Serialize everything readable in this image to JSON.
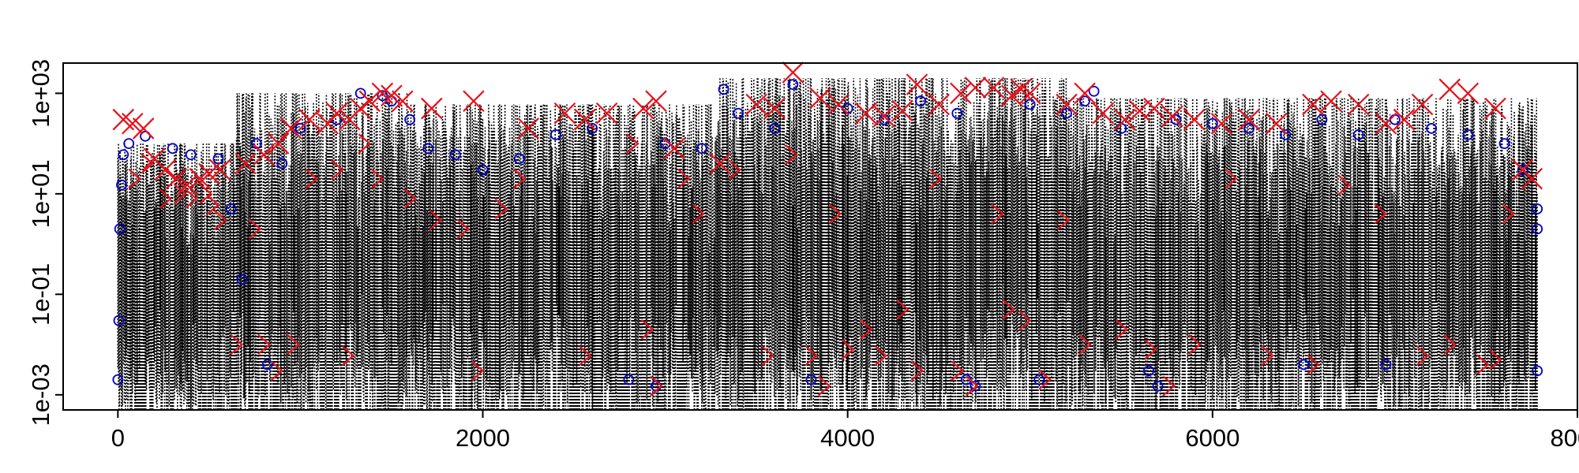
{
  "chart_data": {
    "type": "scatter",
    "title": "",
    "xlabel": "",
    "ylabel": "",
    "y_scale": "log10",
    "xlim": [
      -300,
      8000
    ],
    "ylim": [
      0.0005,
      4000
    ],
    "x_ticks": [
      0,
      2000,
      4000,
      6000,
      8000
    ],
    "x_tick_labels": [
      "0",
      "2000",
      "4000",
      "6000",
      "8000"
    ],
    "y_ticks": [
      0.001,
      0.1,
      10,
      1000
    ],
    "y_tick_labels": [
      "1e-03",
      "1e-01",
      "1e+01",
      "1e+03"
    ],
    "colors": {
      "series_line": "#000000",
      "circle_marker": "#0000cc",
      "x_marker": "#e8101a",
      "chevron_marker": "#e8101a"
    },
    "series": [
      {
        "name": "time series (dotted line)",
        "style": "line-dotted",
        "x_range": [
          0,
          7780
        ],
        "segments": [
          {
            "x_from": 0,
            "x_to": 650,
            "y_min": 0.0005,
            "y_max": 100
          },
          {
            "x_from": 650,
            "x_to": 1600,
            "y_min": 0.0005,
            "y_max": 1000
          },
          {
            "x_from": 1600,
            "x_to": 3300,
            "y_min": 0.0005,
            "y_max": 600
          },
          {
            "x_from": 3300,
            "x_to": 5200,
            "y_min": 0.0005,
            "y_max": 2000
          },
          {
            "x_from": 5200,
            "x_to": 7780,
            "y_min": 0.0005,
            "y_max": 800
          }
        ]
      },
      {
        "name": "circles",
        "style": "circle",
        "points": [
          [
            0,
            0.002
          ],
          [
            5,
            0.03
          ],
          [
            10,
            2
          ],
          [
            20,
            15
          ],
          [
            30,
            60
          ],
          [
            60,
            100
          ],
          [
            150,
            140
          ],
          [
            300,
            80
          ],
          [
            400,
            60
          ],
          [
            550,
            50
          ],
          [
            620,
            5
          ],
          [
            680,
            0.2
          ],
          [
            760,
            100
          ],
          [
            820,
            0.004
          ],
          [
            900,
            40
          ],
          [
            1000,
            200
          ],
          [
            1200,
            300
          ],
          [
            1330,
            1000
          ],
          [
            1450,
            900
          ],
          [
            1500,
            700
          ],
          [
            1600,
            300
          ],
          [
            1700,
            80
          ],
          [
            1850,
            60
          ],
          [
            2000,
            30
          ],
          [
            2200,
            50
          ],
          [
            2400,
            150
          ],
          [
            2600,
            200
          ],
          [
            2800,
            0.002
          ],
          [
            2950,
            0.0015
          ],
          [
            3000,
            100
          ],
          [
            3200,
            80
          ],
          [
            3320,
            1200
          ],
          [
            3400,
            400
          ],
          [
            3600,
            200
          ],
          [
            3700,
            1500
          ],
          [
            3800,
            0.002
          ],
          [
            4000,
            500
          ],
          [
            4200,
            300
          ],
          [
            4400,
            700
          ],
          [
            4600,
            400
          ],
          [
            4650,
            0.002
          ],
          [
            4700,
            0.0015
          ],
          [
            5000,
            600
          ],
          [
            5050,
            0.002
          ],
          [
            5200,
            400
          ],
          [
            5300,
            700
          ],
          [
            5350,
            1100
          ],
          [
            5500,
            200
          ],
          [
            5650,
            0.003
          ],
          [
            5700,
            0.0015
          ],
          [
            5800,
            300
          ],
          [
            6000,
            250
          ],
          [
            6200,
            200
          ],
          [
            6400,
            150
          ],
          [
            6500,
            0.004
          ],
          [
            6600,
            300
          ],
          [
            6800,
            150
          ],
          [
            6950,
            0.004
          ],
          [
            7000,
            300
          ],
          [
            7200,
            200
          ],
          [
            7400,
            150
          ],
          [
            7600,
            100
          ],
          [
            7700,
            30
          ],
          [
            7780,
            0.003
          ],
          [
            7780,
            5
          ],
          [
            7780,
            2
          ]
        ]
      },
      {
        "name": "crosses",
        "style": "x",
        "points": [
          [
            30,
            300
          ],
          [
            80,
            250
          ],
          [
            140,
            200
          ],
          [
            200,
            50
          ],
          [
            260,
            30
          ],
          [
            320,
            20
          ],
          [
            380,
            15
          ],
          [
            450,
            20
          ],
          [
            500,
            25
          ],
          [
            560,
            30
          ],
          [
            700,
            40
          ],
          [
            800,
            60
          ],
          [
            880,
            100
          ],
          [
            950,
            200
          ],
          [
            1050,
            300
          ],
          [
            1150,
            250
          ],
          [
            1200,
            400
          ],
          [
            1270,
            300
          ],
          [
            1330,
            500
          ],
          [
            1380,
            700
          ],
          [
            1450,
            1000
          ],
          [
            1500,
            900
          ],
          [
            1560,
            700
          ],
          [
            1720,
            500
          ],
          [
            1950,
            700
          ],
          [
            2250,
            200
          ],
          [
            2450,
            400
          ],
          [
            2560,
            300
          ],
          [
            2680,
            400
          ],
          [
            2880,
            500
          ],
          [
            2950,
            700
          ],
          [
            3050,
            80
          ],
          [
            3300,
            40
          ],
          [
            3500,
            600
          ],
          [
            3600,
            500
          ],
          [
            3700,
            2600
          ],
          [
            3850,
            800
          ],
          [
            3950,
            600
          ],
          [
            4100,
            400
          ],
          [
            4200,
            350
          ],
          [
            4300,
            450
          ],
          [
            4380,
            1500
          ],
          [
            4500,
            600
          ],
          [
            4620,
            1000
          ],
          [
            4700,
            1300
          ],
          [
            4800,
            1300
          ],
          [
            4900,
            900
          ],
          [
            4950,
            1200
          ],
          [
            5000,
            1000
          ],
          [
            5200,
            600
          ],
          [
            5300,
            1000
          ],
          [
            5400,
            400
          ],
          [
            5520,
            300
          ],
          [
            5600,
            450
          ],
          [
            5680,
            500
          ],
          [
            5780,
            350
          ],
          [
            5900,
            300
          ],
          [
            6050,
            250
          ],
          [
            6200,
            300
          ],
          [
            6350,
            250
          ],
          [
            6550,
            600
          ],
          [
            6650,
            700
          ],
          [
            6800,
            600
          ],
          [
            6950,
            250
          ],
          [
            7050,
            300
          ],
          [
            7150,
            600
          ],
          [
            7300,
            1200
          ],
          [
            7400,
            1000
          ],
          [
            7550,
            500
          ],
          [
            7700,
            30
          ],
          [
            7750,
            20
          ]
        ]
      },
      {
        "name": "chevrons",
        "style": "chevron",
        "points": [
          [
            90,
            20
          ],
          [
            160,
            40
          ],
          [
            260,
            8
          ],
          [
            340,
            10
          ],
          [
            400,
            8
          ],
          [
            480,
            10
          ],
          [
            520,
            6
          ],
          [
            560,
            3
          ],
          [
            650,
            0.01
          ],
          [
            750,
            2
          ],
          [
            800,
            0.01
          ],
          [
            870,
            0.003
          ],
          [
            960,
            0.01
          ],
          [
            1060,
            20
          ],
          [
            1200,
            30
          ],
          [
            1260,
            0.006
          ],
          [
            1350,
            100
          ],
          [
            1420,
            20
          ],
          [
            1600,
            8
          ],
          [
            1740,
            3
          ],
          [
            1890,
            2
          ],
          [
            1970,
            0.003
          ],
          [
            2100,
            5
          ],
          [
            2200,
            20
          ],
          [
            2560,
            0.006
          ],
          [
            2820,
            100
          ],
          [
            2900,
            0.02
          ],
          [
            2950,
            0.0015
          ],
          [
            3100,
            20
          ],
          [
            3180,
            4
          ],
          [
            3380,
            30
          ],
          [
            3560,
            0.006
          ],
          [
            3690,
            60
          ],
          [
            3800,
            0.006
          ],
          [
            3870,
            0.0015
          ],
          [
            3930,
            4
          ],
          [
            4000,
            0.008
          ],
          [
            4100,
            0.02
          ],
          [
            4180,
            0.006
          ],
          [
            4300,
            0.05
          ],
          [
            4380,
            0.003
          ],
          [
            4480,
            20
          ],
          [
            4600,
            0.003
          ],
          [
            4680,
            0.0015
          ],
          [
            4820,
            4
          ],
          [
            4880,
            0.05
          ],
          [
            4970,
            0.03
          ],
          [
            5080,
            0.002
          ],
          [
            5180,
            3
          ],
          [
            5300,
            0.01
          ],
          [
            5500,
            0.02
          ],
          [
            5660,
            0.008
          ],
          [
            5760,
            0.0015
          ],
          [
            5900,
            0.01
          ],
          [
            6100,
            20
          ],
          [
            6300,
            0.006
          ],
          [
            6550,
            0.004
          ],
          [
            6720,
            15
          ],
          [
            6920,
            4
          ],
          [
            7150,
            0.006
          ],
          [
            7300,
            0.01
          ],
          [
            7480,
            0.004
          ],
          [
            7550,
            0.005
          ],
          [
            7620,
            4
          ]
        ]
      }
    ]
  }
}
